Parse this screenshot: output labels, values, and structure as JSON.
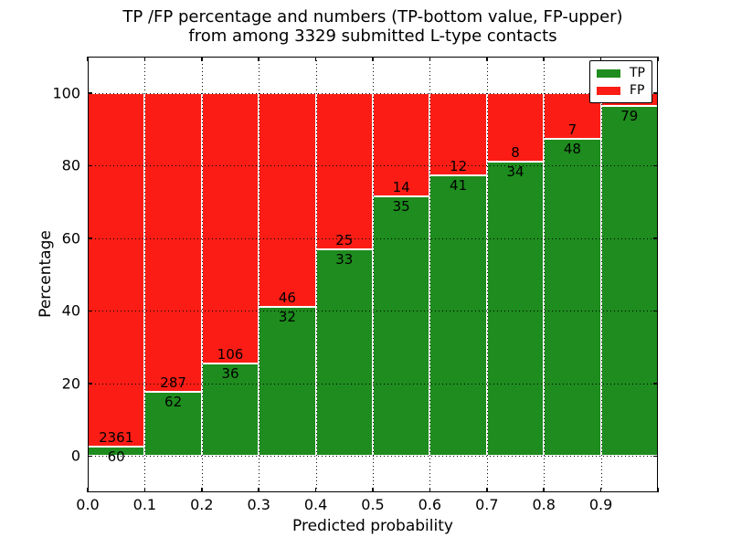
{
  "title_line1": "TP /FP percentage and numbers (TP-bottom value, FP-upper)",
  "title_line2": "from among 3329 submitted L-type contacts",
  "chart_data": {
    "type": "bar",
    "stacked": true,
    "normalized": "each bin scaled to 100%",
    "title": "TP /FP percentage and numbers (TP-bottom value, FP-upper) from among 3329 submitted L-type contacts",
    "total_submitted": 3329,
    "xlabel": "Predicted probability",
    "ylabel": "Percentage",
    "xlim": [
      0.0,
      1.0
    ],
    "ylim": [
      -10,
      110
    ],
    "grid": true,
    "x_tick_labels": [
      "0.0",
      "0.1",
      "0.2",
      "0.3",
      "0.4",
      "0.5",
      "0.6",
      "0.7",
      "0.8",
      "0.9"
    ],
    "y_tick_labels": [
      "0",
      "20",
      "40",
      "60",
      "80",
      "100"
    ],
    "y_tick_values": [
      0,
      20,
      40,
      60,
      80,
      100
    ],
    "bin_width": 0.1,
    "bin_starts": [
      0.0,
      0.1,
      0.2,
      0.3,
      0.4,
      0.5,
      0.6,
      0.7,
      0.8,
      0.9
    ],
    "series": [
      {
        "name": "TP",
        "color": "#1e8c1e",
        "counts": [
          60,
          62,
          36,
          32,
          33,
          35,
          41,
          34,
          48,
          79
        ]
      },
      {
        "name": "FP",
        "color": "#fb1d15",
        "counts": [
          2361,
          287,
          106,
          46,
          25,
          14,
          12,
          8,
          7,
          null
        ]
      }
    ],
    "tp_percent_estimated": [
      2.48,
      17.77,
      25.35,
      41.03,
      56.9,
      71.43,
      77.36,
      80.95,
      87.27,
      96.34
    ],
    "tp_labels": [
      "60",
      "62",
      "36",
      "32",
      "33",
      "35",
      "41",
      "34",
      "48",
      "79"
    ],
    "fp_labels": [
      "2361",
      "287",
      "106",
      "46",
      "25",
      "14",
      "12",
      "8",
      "7",
      ""
    ],
    "legend": {
      "position": "upper right",
      "entries": [
        {
          "label": "TP",
          "color": "#1e8c1e"
        },
        {
          "label": "FP",
          "color": "#fb1d15"
        }
      ]
    }
  }
}
